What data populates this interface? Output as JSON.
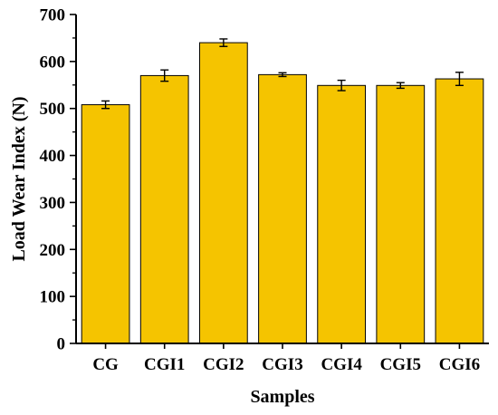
{
  "chart_data": {
    "type": "bar",
    "categories": [
      "CG",
      "CGI1",
      "CGI2",
      "CGI3",
      "CGI4",
      "CGI5",
      "CGI6"
    ],
    "values": [
      508,
      570,
      640,
      572,
      549,
      549,
      563
    ],
    "errors": [
      8,
      12,
      8,
      4,
      11,
      6,
      14
    ],
    "xlabel": "Samples",
    "ylabel": "Load Wear Index (N)",
    "ylim": [
      0,
      700
    ],
    "yticks": [
      0,
      100,
      200,
      300,
      400,
      500,
      600,
      700
    ],
    "grid": false,
    "legend": "none",
    "colors": {
      "bar": "#F5C400",
      "edge": "#000000",
      "axis": "#000000"
    }
  }
}
